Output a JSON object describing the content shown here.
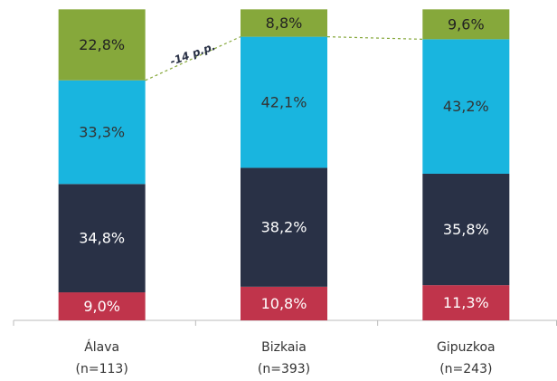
{
  "chart_data": {
    "type": "stacked_bar",
    "categories": [
      "Álava",
      "Bizkaia",
      "Gipuzkoa"
    ],
    "category_notes": [
      "(n=113)",
      "(n=393)",
      "(n=243)"
    ],
    "ylim": [
      0,
      100
    ],
    "series": [
      {
        "color": "#c0344b",
        "label_color": "#ffffff",
        "values": [
          9.0,
          10.8,
          11.3
        ],
        "value_labels": [
          "9,0%",
          "10,8%",
          "11,3%"
        ]
      },
      {
        "color": "#293146",
        "label_color": "#ffffff",
        "values": [
          34.8,
          38.2,
          35.8
        ],
        "value_labels": [
          "34,8%",
          "38,2%",
          "35,8%"
        ]
      },
      {
        "color": "#19b5df",
        "label_color": "#333333",
        "values": [
          33.3,
          42.1,
          43.2
        ],
        "value_labels": [
          "33,3%",
          "42,1%",
          "43,2%"
        ]
      },
      {
        "color": "#86a83b",
        "label_color": "#222222",
        "values": [
          22.8,
          8.8,
          9.6
        ],
        "value_labels": [
          "22,8%",
          "8,8%",
          "9,6%"
        ]
      }
    ],
    "annotation": "-14 p.p."
  }
}
